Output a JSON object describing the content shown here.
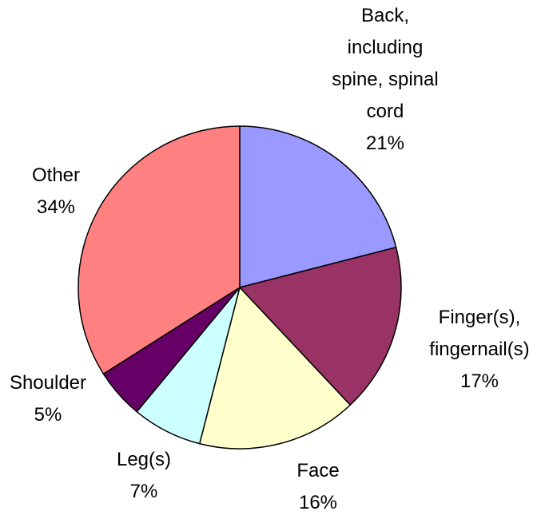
{
  "chart_data": {
    "type": "pie",
    "categories": [
      "Back, including spine, spinal cord",
      "Finger(s), fingernail(s)",
      "Face",
      "Leg(s)",
      "Shoulder",
      "Other"
    ],
    "values": [
      21,
      17,
      16,
      7,
      5,
      34
    ],
    "value_labels": [
      "21%",
      "17%",
      "16%",
      "7%",
      "5%",
      "34%"
    ],
    "colors": [
      "#9999ff",
      "#993366",
      "#ffffcc",
      "#ccffff",
      "#660066",
      "#ff8080"
    ]
  }
}
